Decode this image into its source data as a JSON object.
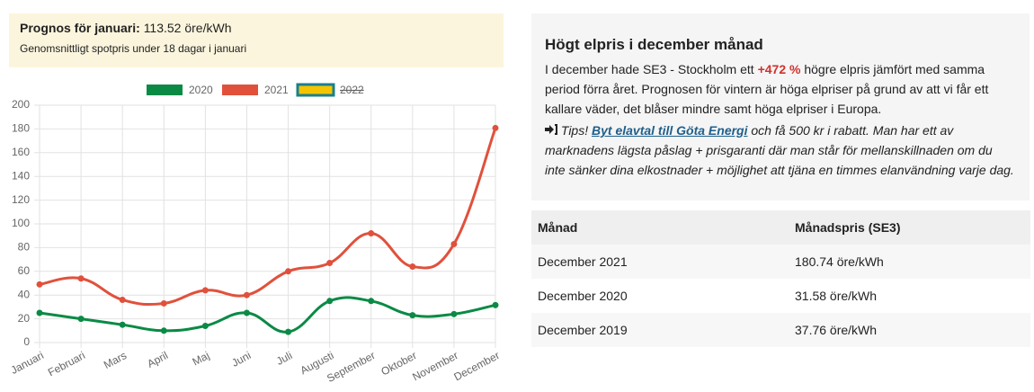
{
  "prognosis": {
    "label": "Prognos för januari:",
    "value": "113.52 öre/kWh",
    "note": "Genomsnittligt spotpris under 18 dagar i januari"
  },
  "chart_data": {
    "type": "line",
    "categories": [
      "Januari",
      "Februari",
      "Mars",
      "April",
      "Maj",
      "Juni",
      "Juli",
      "Augusti",
      "September",
      "Oktober",
      "November",
      "December"
    ],
    "series": [
      {
        "name": "2020",
        "color": "#0a8a45",
        "values": [
          25,
          20,
          15,
          10,
          14,
          25,
          9,
          35,
          35,
          23,
          24,
          31.58
        ]
      },
      {
        "name": "2021",
        "color": "#e0513c",
        "values": [
          49,
          54,
          36,
          33,
          44,
          40,
          60,
          67,
          92,
          64,
          83,
          180.74
        ]
      },
      {
        "name": "2022",
        "color": "#f5c400",
        "border": "#1a7f8f",
        "hidden": true,
        "values": [
          null,
          null,
          null,
          null,
          null,
          null,
          null,
          null,
          null,
          null,
          null,
          null
        ]
      }
    ],
    "ylim": [
      0,
      200
    ],
    "yticks": [
      0,
      20,
      40,
      60,
      80,
      100,
      120,
      140,
      160,
      180,
      200
    ],
    "grid": true,
    "legend": "top"
  },
  "info": {
    "title": "Högt elpris i december månad",
    "text_before": "I december hade SE3 - Stockholm ett ",
    "highlight": "+472 %",
    "text_after": " högre elpris jämfört med samma period förra året. Prognosen för vintern är höga elpriser på grund av att vi får ett kallare väder, det blåser mindre samt höga elpriser i Europa.",
    "tip_label": "Tips!",
    "tip_link": "Byt elavtal till Göta Energi",
    "tip_text": " och få 500 kr i rabatt. Man har ett av marknadens lägsta påslag + prisgaranti där man står för mellanskillnaden om du inte sänker dina elkostnader + möjlighet att tjäna en timmes elanvändning varje dag."
  },
  "table": {
    "headers": [
      "Månad",
      "Månadspris (SE3)"
    ],
    "rows": [
      [
        "December 2021",
        "180.74 öre/kWh"
      ],
      [
        "December 2020",
        "31.58 öre/kWh"
      ],
      [
        "December 2019",
        "37.76 öre/kWh"
      ]
    ]
  }
}
